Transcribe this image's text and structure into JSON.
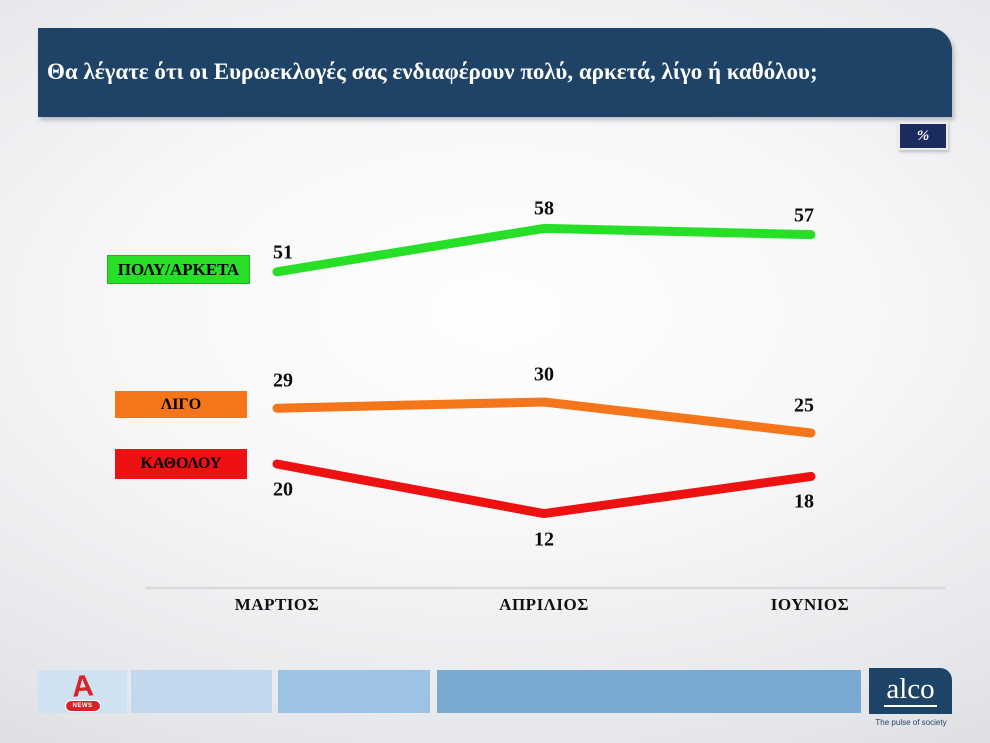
{
  "title": "Θα λέγατε ότι οι Ευρωεκλογές σας ενδιαφέρουν πολύ, αρκετά, λίγο ή καθόλου;",
  "unit_badge": "%",
  "chart_data": {
    "type": "line",
    "categories": [
      "ΜΑΡΤΙΟΣ",
      "ΑΠΡΙΛΙΟΣ",
      "ΙΟΥΝΙΟΣ"
    ],
    "series": [
      {
        "name": "ΠΟΛΥ/ΑΡΚΕΤΑ",
        "color": "#26DF26",
        "values": [
          51,
          58,
          57
        ]
      },
      {
        "name": "ΛΙΓΟ",
        "color": "#F5761A",
        "values": [
          29,
          30,
          25
        ]
      },
      {
        "name": "ΚΑΘΟΛΟΥ",
        "color": "#EE1111",
        "values": [
          20,
          12,
          18
        ]
      }
    ],
    "ylim": [
      0,
      95
    ],
    "grid": false,
    "legend_position": "left",
    "title": "Θα λέγατε ότι οι Ευρωεκλογές σας ενδιαφέρουν πολύ, αρκετά, λίγο ή καθόλου;",
    "xlabel": "",
    "ylabel": "%"
  },
  "footer": {
    "alpha_a": "A",
    "alpha_news_label": "NEWS",
    "alco_logo": "alco",
    "alco_tagline": "The pulse of society"
  },
  "colors": {
    "title_bar": "#1E4366",
    "badge": "#1B2B5E",
    "axis_line": "#D9DADC",
    "alpha_red": "#D8232A",
    "alco_navy": "#1D4467"
  }
}
